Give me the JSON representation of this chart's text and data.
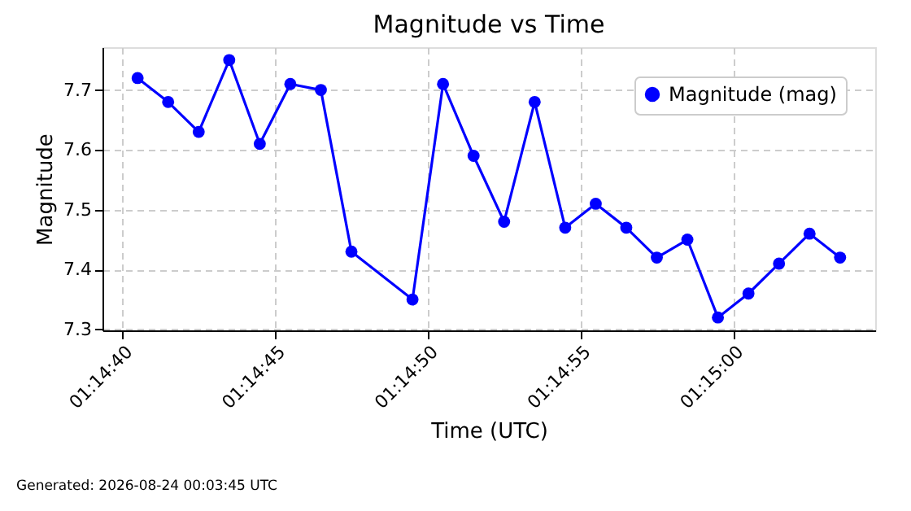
{
  "chart_data": {
    "type": "line",
    "title": "Magnitude vs Time",
    "xlabel": "Time (UTC)",
    "ylabel": "Magnitude",
    "x": [
      "2026-08-24T01:14:40.5",
      "2026-08-24T01:14:41.5",
      "2026-08-24T01:14:42.5",
      "2026-08-24T01:14:43.5",
      "2026-08-24T01:14:44.5",
      "2026-08-24T01:14:45.5",
      "2026-08-24T01:14:46.5",
      "2026-08-24T01:14:47.5",
      "2026-08-24T01:14:49.5",
      "2026-08-24T01:14:50.5",
      "2026-08-24T01:14:51.5",
      "2026-08-24T01:14:52.5",
      "2026-08-24T01:14:53.5",
      "2026-08-24T01:14:54.5",
      "2026-08-24T01:14:55.5",
      "2026-08-24T01:14:56.5",
      "2026-08-24T01:14:57.5",
      "2026-08-24T01:14:58.5",
      "2026-08-24T01:14:59.5",
      "2026-08-24T01:15:00.5",
      "2026-08-24T01:15:01.5",
      "2026-08-24T01:15:02.5",
      "2026-08-24T01:15:03.5"
    ],
    "series": [
      {
        "name": "Magnitude (mag)",
        "color": "#0000ff",
        "values": [
          7.72,
          7.68,
          7.63,
          7.75,
          7.61,
          7.71,
          7.7,
          7.43,
          7.35,
          7.71,
          7.59,
          7.48,
          7.68,
          7.47,
          7.51,
          7.47,
          7.42,
          7.45,
          7.32,
          7.36,
          7.41,
          7.46,
          7.42
        ]
      }
    ],
    "xlim": [
      "2026-08-24T01:14:39.35",
      "2026-08-24T01:15:04.65"
    ],
    "xticks": [
      {
        "value": "2026-08-24T01:14:40",
        "label": "01:14:40"
      },
      {
        "value": "2026-08-24T01:14:45",
        "label": "01:14:45"
      },
      {
        "value": "2026-08-24T01:14:50",
        "label": "01:14:50"
      },
      {
        "value": "2026-08-24T01:14:55",
        "label": "01:14:55"
      },
      {
        "value": "2026-08-24T01:15:00",
        "label": "01:15:00"
      }
    ],
    "ylim": [
      7.2985,
      7.7715
    ],
    "yticks": [
      7.3,
      7.4,
      7.5,
      7.6,
      7.7
    ],
    "grid": true,
    "legend": "top right",
    "marker": "circle",
    "line_style": "solid",
    "annotations": [
      "Generated: 2026-08-24 00:03:45 UTC"
    ]
  }
}
